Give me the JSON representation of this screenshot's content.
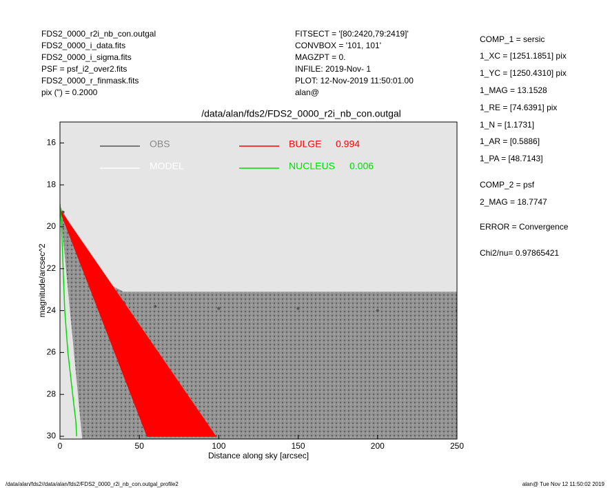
{
  "header": {
    "left": [
      "FDS2_0000_r2i_nb_con.outgal",
      "FDS2_0000_i_data.fits",
      "FDS2_0000_i_sigma.fits",
      "PSF     = psf_i2_over2.fits",
      "FDS2_0000_r_finmask.fits",
      "pix (\") =  0.2000"
    ],
    "middle": [
      "FITSECT = '[80:2420,79:2419]'",
      "CONVBOX = '101, 101'",
      "MAGZPT  =               0.",
      "INFILE: 2019-Nov- 1",
      "PLOT: 12-Nov-2019 11:50:01.00",
      "alan@"
    ]
  },
  "side": [
    "COMP_1  = sersic",
    "1_XC    = [1251.1851] pix",
    "1_YC    = [1250.4310] pix",
    "1_MAG   = 13.1528",
    "1_RE    = [74.6391] pix",
    "1_N     = [1.1731]",
    "1_AR    = [0.5886]",
    "1_PA    = [48.7143]",
    "COMP_2  = psf",
    "2_MAG   = 18.7747",
    "ERROR   = Convergence",
    "Chi2/nu=      0.97865421"
  ],
  "footer": {
    "left": "/data/alan/fds2//data/alan/fds2/FDS2_0000_r2i_nb_con.outgal_profile2",
    "right": "alan@  Tue Nov 12 11:50:02 2019"
  },
  "chart_data": {
    "type": "scatter",
    "title": "/data/alan/fds2/FDS2_0000_r2i_nb_con.outgal",
    "xlabel": "Distance along sky [arcsec]",
    "ylabel": "magnitude/arcsec^2",
    "xlim": [
      0,
      250
    ],
    "ylim": [
      15,
      30
    ],
    "y_inverted": true,
    "xticks": [
      0,
      50,
      100,
      150,
      200,
      250
    ],
    "yticks": [
      16,
      18,
      20,
      22,
      24,
      26,
      28,
      30
    ],
    "series": [
      {
        "name": "OBS",
        "color": "#555555",
        "kind": "points",
        "x": [
          2,
          10,
          20,
          30,
          40,
          60,
          100,
          150,
          200,
          250
        ],
        "values": [
          19.3,
          21,
          22.5,
          23.3,
          23.6,
          23.8,
          23.9,
          23.9,
          24,
          24
        ]
      },
      {
        "name": "MODEL",
        "color": "#ffffff",
        "kind": "points",
        "x": [],
        "values": []
      },
      {
        "name": "BULGE",
        "fraction": 0.994,
        "color": "#ff0000",
        "kind": "wedge",
        "x": [
          0,
          55,
          98
        ],
        "values": [
          19.2,
          30,
          30
        ]
      },
      {
        "name": "NUCLEUS",
        "fraction": 0.006,
        "color": "#00dd00",
        "kind": "line",
        "x": [
          0,
          1,
          2,
          3,
          5,
          8,
          10,
          10.5
        ],
        "values": [
          18.9,
          20,
          22,
          24,
          26,
          28,
          29.3,
          30
        ]
      }
    ]
  }
}
